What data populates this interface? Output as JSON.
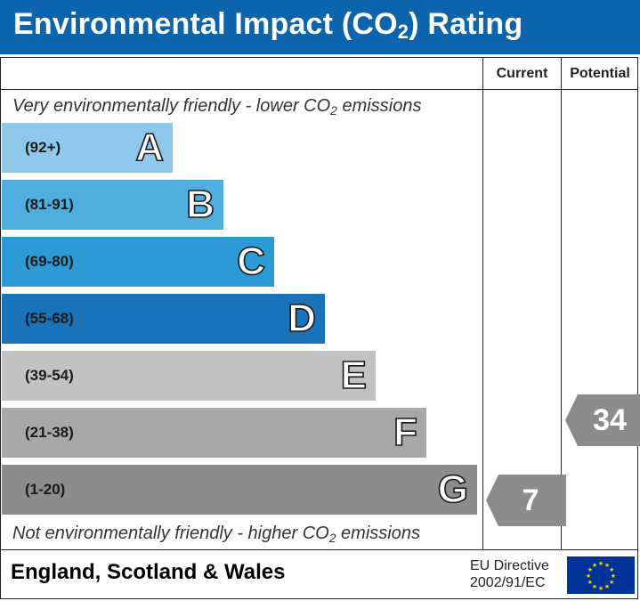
{
  "header": {
    "title_prefix": "Environmental Impact (CO",
    "title_sub": "2",
    "title_suffix": ") Rating"
  },
  "columns": {
    "current": "Current",
    "potential": "Potential"
  },
  "captions": {
    "top_prefix": "Very environmentally friendly - lower CO",
    "top_sub": "2",
    "top_suffix": " emissions",
    "bottom_prefix": "Not environmentally friendly - higher CO",
    "bottom_sub": "2",
    "bottom_suffix": " emissions"
  },
  "chart_data": {
    "type": "bar",
    "title": "Environmental Impact (CO2) Rating",
    "categories": [
      "A",
      "B",
      "C",
      "D",
      "E",
      "F",
      "G"
    ],
    "ranges": [
      "(92+)",
      "(81-91)",
      "(69-80)",
      "(55-68)",
      "(39-54)",
      "(21-38)",
      "(1-20)"
    ],
    "colors": [
      "#8ec9ec",
      "#4faedf",
      "#2c9bd5",
      "#1a72b8",
      "#c2c2c2",
      "#a8a8a8",
      "#8c8c8c"
    ],
    "current": {
      "value": 7,
      "band": "G"
    },
    "potential": {
      "value": 34,
      "band": "F"
    }
  },
  "footer": {
    "region": "England, Scotland & Wales",
    "directive_line1": "EU Directive",
    "directive_line2": "2002/91/EC"
  }
}
